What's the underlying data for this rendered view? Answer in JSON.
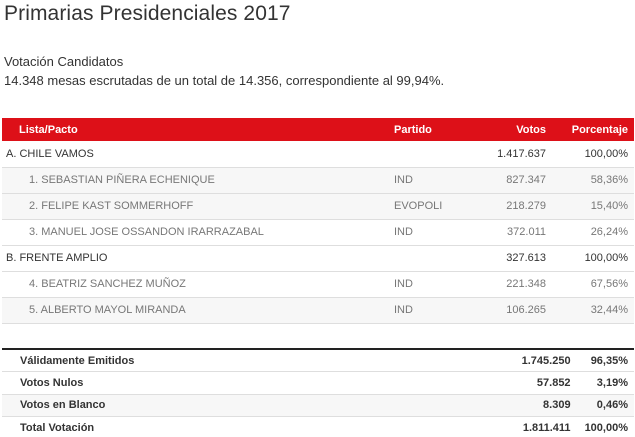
{
  "header": {
    "title": "Primarias Presidenciales 2017",
    "subtitle": "Votación Candidatos",
    "summary": "14.348 mesas escrutadas de un total de 14.356, correspondiente al 99,94%."
  },
  "colors": {
    "header_bg": "#dd1018",
    "header_text": "#ffffff",
    "row_alt_bg": "#f7f7f7",
    "divider": "#dedede",
    "totals_top_border": "#222222"
  },
  "table": {
    "columns": [
      "Lista/Pacto",
      "Partido",
      "Votos",
      "Porcentaje"
    ],
    "rows": [
      {
        "type": "pact",
        "name": "A. CHILE VAMOS",
        "partido": "",
        "votos": "1.417.637",
        "porcentaje": "100,00%"
      },
      {
        "type": "candidate",
        "name": "1. SEBASTIAN PIÑERA ECHENIQUE",
        "partido": "IND",
        "votos": "827.347",
        "porcentaje": "58,36%"
      },
      {
        "type": "candidate",
        "name": "2. FELIPE KAST SOMMERHOFF",
        "partido": "EVOPOLI",
        "votos": "218.279",
        "porcentaje": "15,40%"
      },
      {
        "type": "candidate",
        "name": "3. MANUEL JOSE OSSANDON IRARRAZABAL",
        "partido": "IND",
        "votos": "372.011",
        "porcentaje": "26,24%"
      },
      {
        "type": "pact",
        "name": "B. FRENTE AMPLIO",
        "partido": "",
        "votos": "327.613",
        "porcentaje": "100,00%"
      },
      {
        "type": "candidate",
        "name": "4. BEATRIZ SANCHEZ MUÑOZ",
        "partido": "IND",
        "votos": "221.348",
        "porcentaje": "67,56%"
      },
      {
        "type": "candidate",
        "name": "5. ALBERTO MAYOL MIRANDA",
        "partido": "IND",
        "votos": "106.265",
        "porcentaje": "32,44%"
      }
    ]
  },
  "totals": [
    {
      "label": "Válidamente Emitidos",
      "votos": "1.745.250",
      "porcentaje": "96,35%"
    },
    {
      "label": "Votos Nulos",
      "votos": "57.852",
      "porcentaje": "3,19%"
    },
    {
      "label": "Votos en Blanco",
      "votos": "8.309",
      "porcentaje": "0,46%"
    },
    {
      "label": "Total Votación",
      "votos": "1.811.411",
      "porcentaje": "100,00%"
    }
  ]
}
